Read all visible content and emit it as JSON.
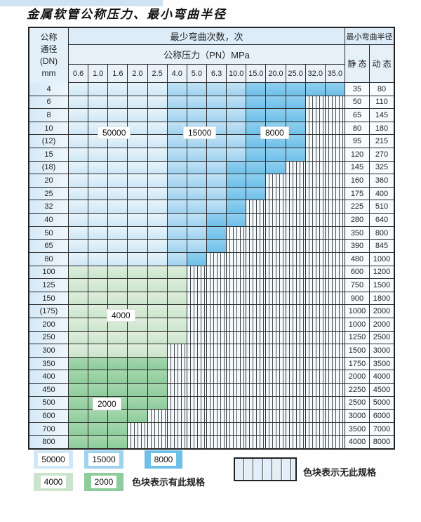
{
  "title": "金属软管公称压力、最小弯曲半径",
  "chart_data": {
    "type": "heatmap",
    "title": "金属软管公称压力、最小弯曲半径",
    "bend_header": "最少弯曲次数，次",
    "pressure_header": "公称压力（PN）MPa",
    "radius_header": "最小弯曲半径",
    "corner": {
      "l1": "公称",
      "l2": "通径",
      "l3": "(DN)",
      "l4": "mm"
    },
    "static_label": "静 态",
    "dynamic_label": "动 态",
    "pressure_cols": [
      "0.6",
      "1.0",
      "1.6",
      "2.0",
      "2.5",
      "4.0",
      "5.0",
      "6.3",
      "10.0",
      "15.0",
      "20.0",
      "25.0",
      "32.0",
      "35.0"
    ],
    "zone_meaning": {
      "5": "50000",
      "15": "15000",
      "8": "8000",
      "4": "4000",
      "2": "2000",
      "n": "无此规格"
    },
    "rows": [
      {
        "dn": "4",
        "zones": [
          "5",
          "5",
          "5",
          "5",
          "5",
          "15",
          "15",
          "15",
          "15",
          "8",
          "8",
          "8",
          "8",
          "8"
        ],
        "static": "35",
        "dynamic": "80"
      },
      {
        "dn": "6",
        "zones": [
          "5",
          "5",
          "5",
          "5",
          "5",
          "15",
          "15",
          "15",
          "15",
          "8",
          "8",
          "8",
          "n",
          "n"
        ],
        "static": "50",
        "dynamic": "110"
      },
      {
        "dn": "8",
        "zones": [
          "5",
          "5",
          "5",
          "5",
          "5",
          "15",
          "15",
          "15",
          "15",
          "8",
          "8",
          "8",
          "n",
          "n"
        ],
        "static": "65",
        "dynamic": "145"
      },
      {
        "dn": "10",
        "zones": [
          "5",
          "5",
          "5",
          "5",
          "5",
          "15",
          "15",
          "15",
          "15",
          "8",
          "8",
          "8",
          "n",
          "n"
        ],
        "static": "80",
        "dynamic": "180"
      },
      {
        "dn": "(12)",
        "zones": [
          "5",
          "5",
          "5",
          "5",
          "5",
          "15",
          "15",
          "15",
          "15",
          "8",
          "8",
          "8",
          "n",
          "n"
        ],
        "static": "95",
        "dynamic": "215"
      },
      {
        "dn": "15",
        "zones": [
          "5",
          "5",
          "5",
          "5",
          "5",
          "15",
          "15",
          "15",
          "15",
          "8",
          "8",
          "8",
          "n",
          "n"
        ],
        "static": "120",
        "dynamic": "270"
      },
      {
        "dn": "(18)",
        "zones": [
          "5",
          "5",
          "5",
          "5",
          "5",
          "15",
          "15",
          "15",
          "8",
          "8",
          "8",
          "n",
          "n",
          "n"
        ],
        "static": "145",
        "dynamic": "325"
      },
      {
        "dn": "20",
        "zones": [
          "5",
          "5",
          "5",
          "5",
          "5",
          "15",
          "15",
          "15",
          "8",
          "8",
          "n",
          "n",
          "n",
          "n"
        ],
        "static": "160",
        "dynamic": "360"
      },
      {
        "dn": "25",
        "zones": [
          "5",
          "5",
          "5",
          "5",
          "5",
          "15",
          "15",
          "15",
          "8",
          "8",
          "n",
          "n",
          "n",
          "n"
        ],
        "static": "175",
        "dynamic": "400"
      },
      {
        "dn": "32",
        "zones": [
          "5",
          "5",
          "5",
          "5",
          "5",
          "15",
          "15",
          "15",
          "8",
          "n",
          "n",
          "n",
          "n",
          "n"
        ],
        "static": "225",
        "dynamic": "510"
      },
      {
        "dn": "40",
        "zones": [
          "5",
          "5",
          "5",
          "5",
          "5",
          "15",
          "15",
          "8",
          "8",
          "n",
          "n",
          "n",
          "n",
          "n"
        ],
        "static": "280",
        "dynamic": "640"
      },
      {
        "dn": "50",
        "zones": [
          "5",
          "5",
          "5",
          "5",
          "5",
          "15",
          "15",
          "8",
          "n",
          "n",
          "n",
          "n",
          "n",
          "n"
        ],
        "static": "350",
        "dynamic": "800"
      },
      {
        "dn": "65",
        "zones": [
          "5",
          "5",
          "5",
          "5",
          "5",
          "15",
          "15",
          "8",
          "n",
          "n",
          "n",
          "n",
          "n",
          "n"
        ],
        "static": "390",
        "dynamic": "845"
      },
      {
        "dn": "80",
        "zones": [
          "5",
          "5",
          "5",
          "5",
          "5",
          "15",
          "8",
          "n",
          "n",
          "n",
          "n",
          "n",
          "n",
          "n"
        ],
        "static": "480",
        "dynamic": "1000"
      },
      {
        "dn": "100",
        "zones": [
          "4",
          "4",
          "4",
          "4",
          "4",
          "4",
          "n",
          "n",
          "n",
          "n",
          "n",
          "n",
          "n",
          "n"
        ],
        "static": "600",
        "dynamic": "1200"
      },
      {
        "dn": "125",
        "zones": [
          "4",
          "4",
          "4",
          "4",
          "4",
          "4",
          "n",
          "n",
          "n",
          "n",
          "n",
          "n",
          "n",
          "n"
        ],
        "static": "750",
        "dynamic": "1500"
      },
      {
        "dn": "150",
        "zones": [
          "4",
          "4",
          "4",
          "4",
          "4",
          "4",
          "n",
          "n",
          "n",
          "n",
          "n",
          "n",
          "n",
          "n"
        ],
        "static": "900",
        "dynamic": "1800"
      },
      {
        "dn": "(175)",
        "zones": [
          "4",
          "4",
          "4",
          "4",
          "4",
          "4",
          "n",
          "n",
          "n",
          "n",
          "n",
          "n",
          "n",
          "n"
        ],
        "static": "1000",
        "dynamic": "2000"
      },
      {
        "dn": "200",
        "zones": [
          "4",
          "4",
          "4",
          "4",
          "4",
          "4",
          "n",
          "n",
          "n",
          "n",
          "n",
          "n",
          "n",
          "n"
        ],
        "static": "1000",
        "dynamic": "2000"
      },
      {
        "dn": "250",
        "zones": [
          "4",
          "4",
          "4",
          "4",
          "4",
          "4",
          "n",
          "n",
          "n",
          "n",
          "n",
          "n",
          "n",
          "n"
        ],
        "static": "1250",
        "dynamic": "2500"
      },
      {
        "dn": "300",
        "zones": [
          "4",
          "4",
          "4",
          "4",
          "4",
          "n",
          "n",
          "n",
          "n",
          "n",
          "n",
          "n",
          "n",
          "n"
        ],
        "static": "1500",
        "dynamic": "3000"
      },
      {
        "dn": "350",
        "zones": [
          "2",
          "2",
          "2",
          "2",
          "2",
          "n",
          "n",
          "n",
          "n",
          "n",
          "n",
          "n",
          "n",
          "n"
        ],
        "static": "1750",
        "dynamic": "3500"
      },
      {
        "dn": "400",
        "zones": [
          "2",
          "2",
          "2",
          "2",
          "2",
          "n",
          "n",
          "n",
          "n",
          "n",
          "n",
          "n",
          "n",
          "n"
        ],
        "static": "2000",
        "dynamic": "4000"
      },
      {
        "dn": "450",
        "zones": [
          "2",
          "2",
          "2",
          "2",
          "2",
          "n",
          "n",
          "n",
          "n",
          "n",
          "n",
          "n",
          "n",
          "n"
        ],
        "static": "2250",
        "dynamic": "4500"
      },
      {
        "dn": "500",
        "zones": [
          "2",
          "2",
          "2",
          "2",
          "2",
          "n",
          "n",
          "n",
          "n",
          "n",
          "n",
          "n",
          "n",
          "n"
        ],
        "static": "2500",
        "dynamic": "5000"
      },
      {
        "dn": "600",
        "zones": [
          "2",
          "2",
          "2",
          "2",
          "n",
          "n",
          "n",
          "n",
          "n",
          "n",
          "n",
          "n",
          "n",
          "n"
        ],
        "static": "3000",
        "dynamic": "6000"
      },
      {
        "dn": "700",
        "zones": [
          "2",
          "2",
          "2",
          "n",
          "n",
          "n",
          "n",
          "n",
          "n",
          "n",
          "n",
          "n",
          "n",
          "n"
        ],
        "static": "3500",
        "dynamic": "7000"
      },
      {
        "dn": "800",
        "zones": [
          "2",
          "2",
          "2",
          "n",
          "n",
          "n",
          "n",
          "n",
          "n",
          "n",
          "n",
          "n",
          "n",
          "n"
        ],
        "static": "4000",
        "dynamic": "8000"
      }
    ]
  },
  "overlay_labels": [
    {
      "text": "50000"
    },
    {
      "text": "15000"
    },
    {
      "text": "8000"
    },
    {
      "text": "4000"
    },
    {
      "text": "2000"
    }
  ],
  "legend": {
    "items": [
      {
        "value": "50000",
        "zone": "5"
      },
      {
        "value": "15000",
        "zone": "15"
      },
      {
        "value": "8000",
        "zone": "8"
      },
      {
        "value": "4000",
        "zone": "4"
      },
      {
        "value": "2000",
        "zone": "2"
      }
    ],
    "has_note": "色块表示有此规格",
    "no_note": "色块表示无此规格"
  },
  "colors": {
    "z5": "#cfe7f6",
    "z15": "#9fd2ef",
    "z8": "#6fc0e9",
    "z4": "#cbe5cc",
    "z2": "#8dcc9c",
    "hatch_bg": "#f4f9fc",
    "grid": "#2b2b2b",
    "header_bg": "#dcecf9"
  }
}
